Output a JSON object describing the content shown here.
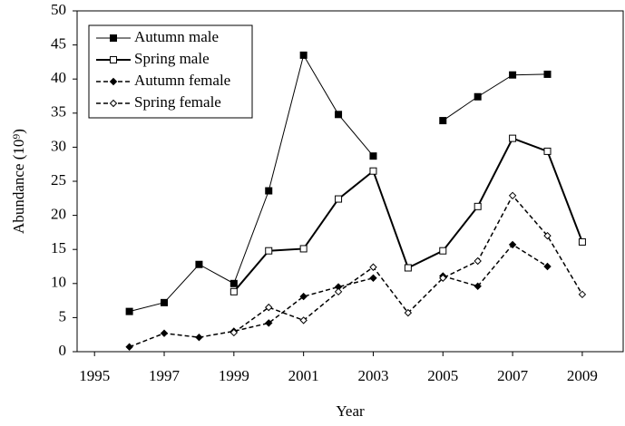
{
  "chart_data": {
    "type": "line",
    "x_label": "Year",
    "y_label": "Abundance (10⁹)",
    "x": [
      1996,
      1997,
      1998,
      1999,
      2000,
      2001,
      2002,
      2003,
      2004,
      2005,
      2006,
      2007,
      2008,
      2009
    ],
    "series": [
      {
        "name": "Autumn male",
        "color": "#000000",
        "marker": "filled-square",
        "dash": "solid",
        "width": 1,
        "values": [
          5.9,
          7.2,
          12.8,
          10,
          23.6,
          43.5,
          34.8,
          28.7,
          null,
          33.9,
          37.4,
          40.6,
          40.7,
          null
        ]
      },
      {
        "name": "Spring male",
        "color": "#000000",
        "marker": "open-square",
        "dash": "solid",
        "width": 2,
        "values": [
          null,
          null,
          null,
          8.8,
          14.8,
          15.1,
          22.4,
          26.5,
          12.3,
          14.8,
          21.3,
          31.3,
          29.4,
          16.1
        ]
      },
      {
        "name": "Autumn female",
        "color": "#000000",
        "marker": "filled-diamond",
        "dash": "dashed",
        "width": 1.5,
        "values": [
          0.7,
          2.7,
          2.1,
          3.0,
          4.2,
          8.1,
          9.5,
          10.8,
          null,
          11.1,
          9.6,
          15.7,
          12.5,
          null
        ]
      },
      {
        "name": "Spring female",
        "color": "#000000",
        "marker": "open-diamond",
        "dash": "dashed",
        "width": 1.5,
        "values": [
          null,
          null,
          null,
          2.8,
          6.5,
          4.6,
          8.8,
          12.4,
          5.7,
          10.8,
          13.3,
          22.9,
          17,
          8.4
        ]
      }
    ],
    "xlim": [
      1994.5,
      2010.2
    ],
    "xticks": [
      1995,
      1997,
      1999,
      2001,
      2003,
      2005,
      2007,
      2009
    ],
    "ylim": [
      0,
      50
    ],
    "yticks": [
      0,
      5,
      10,
      15,
      20,
      25,
      30,
      35,
      40,
      45,
      50
    ],
    "legend": "upper-left"
  }
}
